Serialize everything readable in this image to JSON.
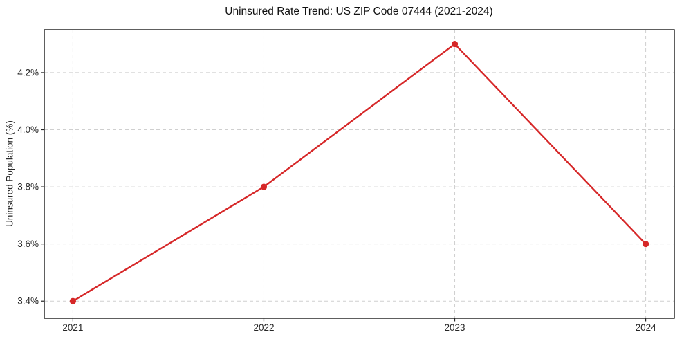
{
  "chart_data": {
    "type": "line",
    "title": "Uninsured Rate Trend: US ZIP Code 07444 (2021-2024)",
    "xlabel": "",
    "ylabel": "Uninsured Population (%)",
    "x": [
      2021,
      2022,
      2023,
      2024
    ],
    "values": [
      3.4,
      3.8,
      4.3,
      3.6
    ],
    "x_ticks": [
      {
        "value": 2021,
        "label": "2021"
      },
      {
        "value": 2022,
        "label": "2022"
      },
      {
        "value": 2023,
        "label": "2023"
      },
      {
        "value": 2024,
        "label": "2024"
      }
    ],
    "y_ticks": [
      {
        "value": 3.4,
        "label": "3.4%"
      },
      {
        "value": 3.6,
        "label": "3.6%"
      },
      {
        "value": 3.8,
        "label": "3.8%"
      },
      {
        "value": 4.0,
        "label": "4.0%"
      },
      {
        "value": 4.2,
        "label": "4.2%"
      }
    ],
    "xlim": [
      2020.85,
      2024.15
    ],
    "ylim": [
      3.34,
      4.35
    ],
    "grid": true,
    "legend": false,
    "line_color": "#d62728",
    "marker": "circle",
    "marker_radius": 4.6,
    "grid_color": "#cfcfcf",
    "background_color": "#ffffff",
    "text_color": "#262626"
  }
}
